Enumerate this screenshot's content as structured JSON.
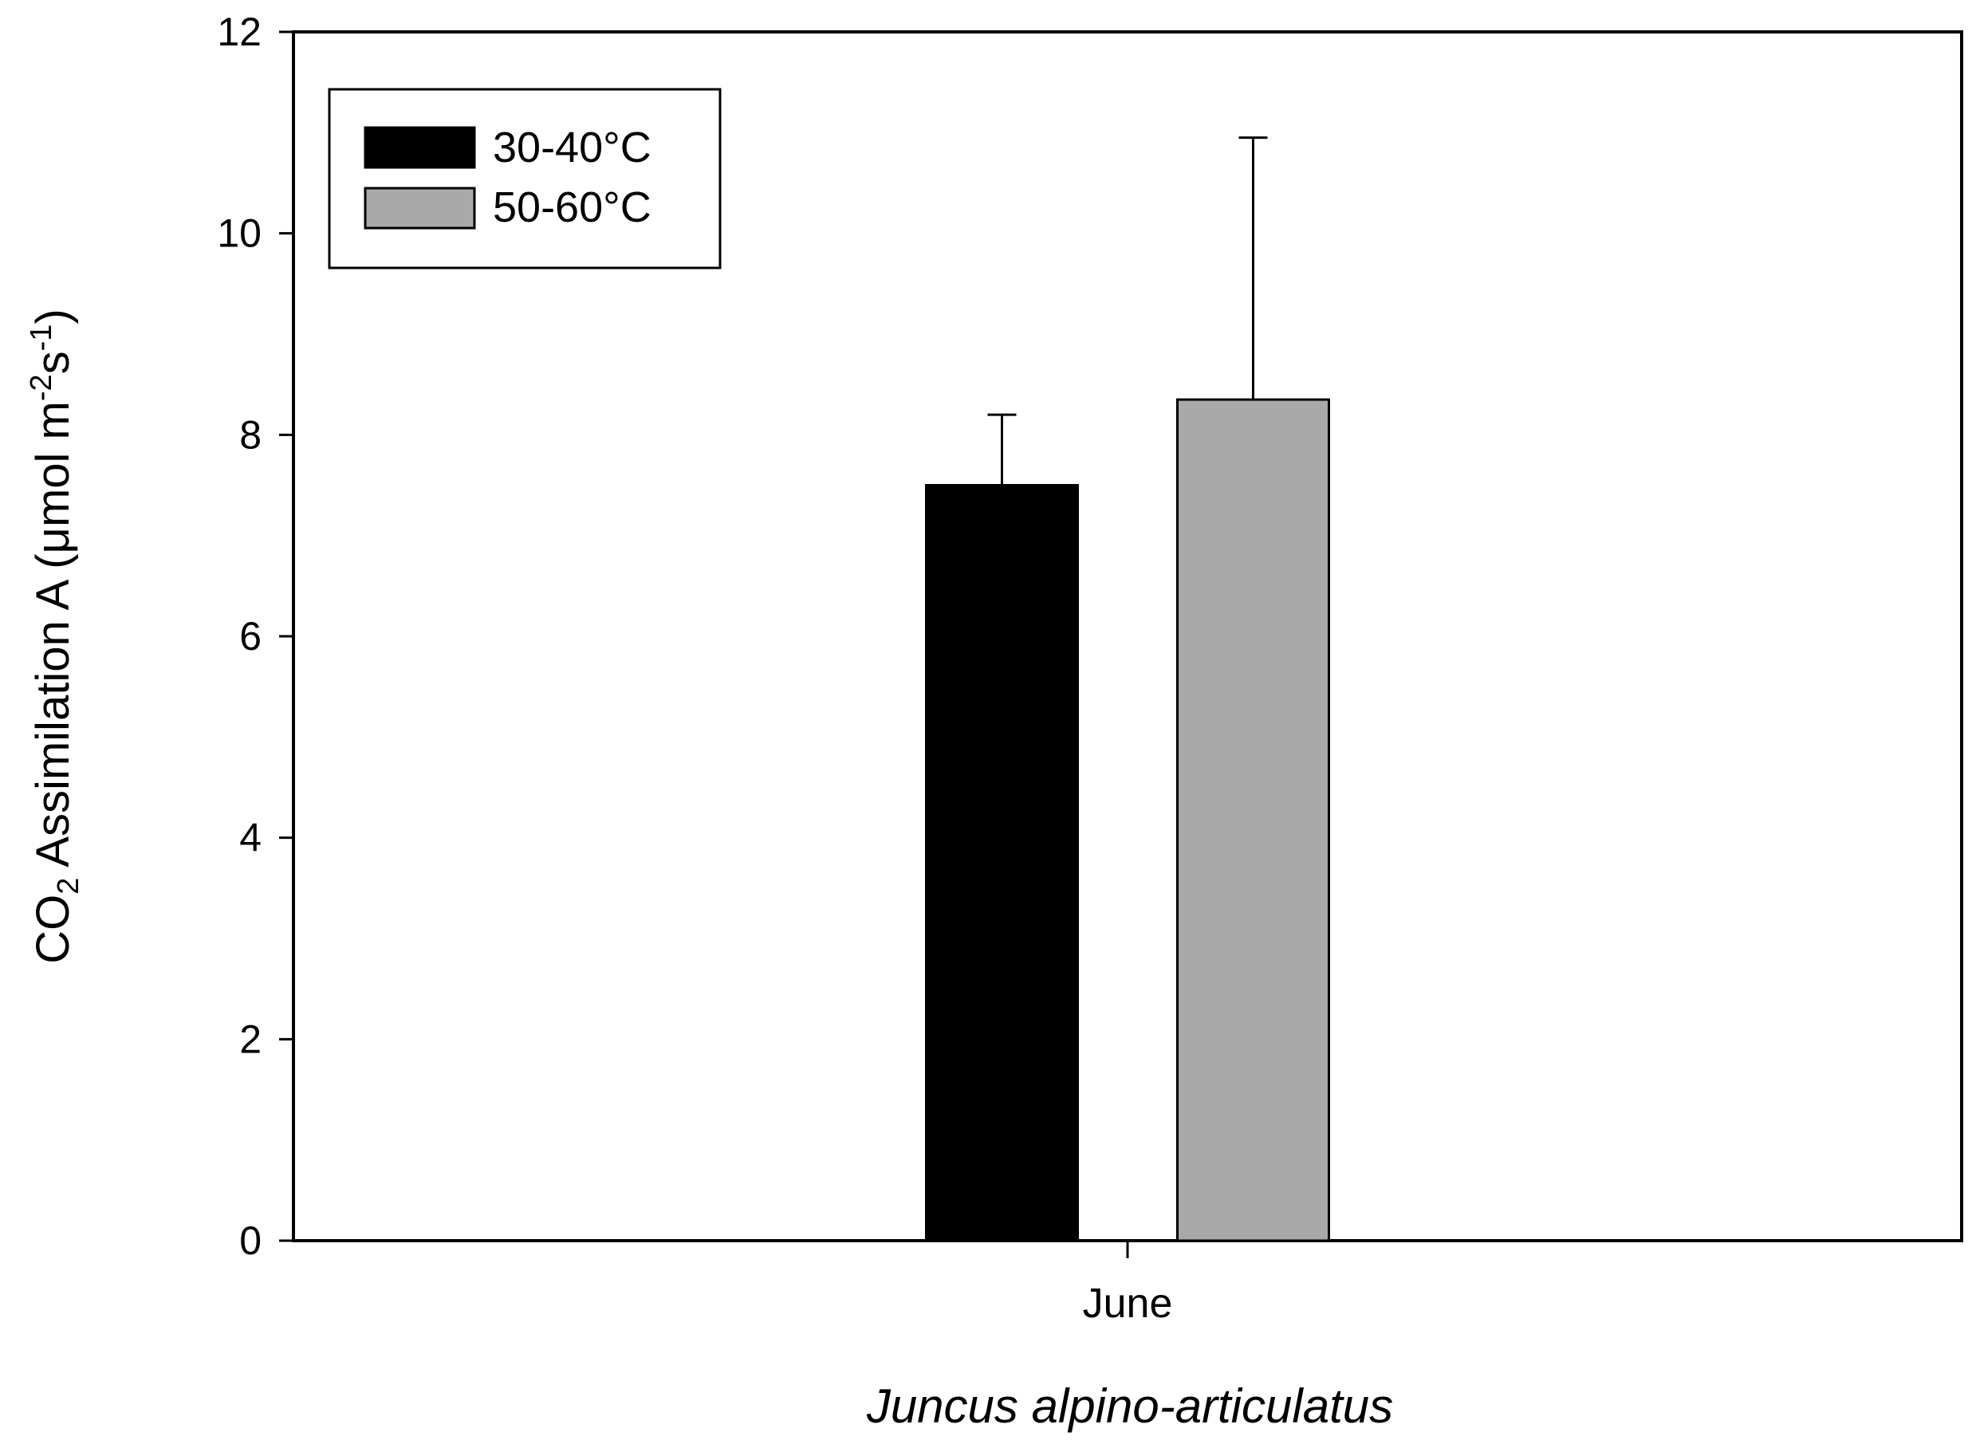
{
  "chart_data": {
    "type": "bar",
    "title": "",
    "xlabel": "Juncus alpino-articulatus",
    "ylabel_parts": {
      "co": "CO",
      "co_sub": "2",
      "main": " Assimilation A (μmol m",
      "sup1": "-2",
      "mid": "s",
      "sup2": "-1",
      "close": ")"
    },
    "categories": [
      "June"
    ],
    "series": [
      {
        "name": "30-40°C",
        "values": [
          7.5
        ],
        "error": [
          0.7
        ],
        "color": "#000000"
      },
      {
        "name": "50-60°C",
        "values": [
          8.35
        ],
        "error": [
          2.6
        ],
        "color": "#a9a9a9"
      }
    ],
    "ylim": [
      0,
      12
    ],
    "yticks": [
      "0",
      "2",
      "4",
      "6",
      "8",
      "10",
      "12"
    ],
    "grid": false,
    "legend_position": "top-left"
  }
}
